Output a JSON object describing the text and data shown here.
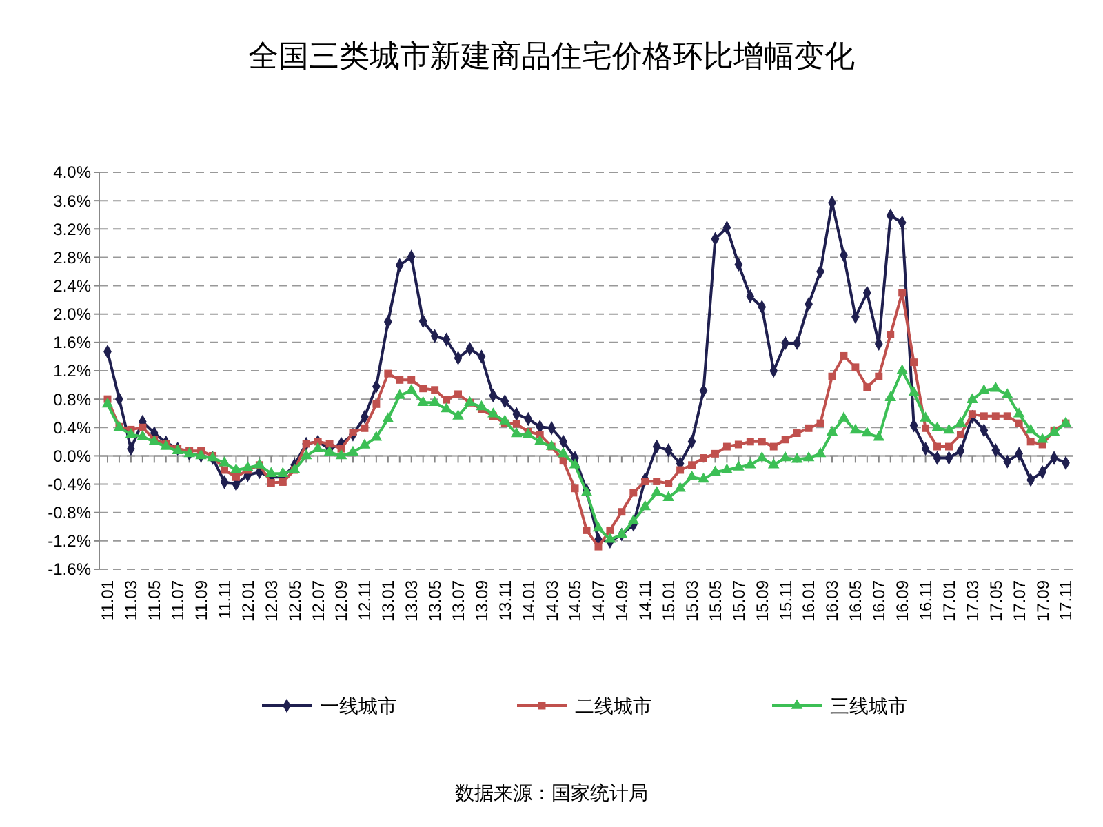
{
  "chart_data": {
    "type": "line",
    "title": "全国三类城市新建商品住宅价格环比增幅变化",
    "categories": [
      "11.01",
      null,
      "11.03",
      null,
      "11.05",
      null,
      "11.07",
      null,
      "11.09",
      null,
      "11.11",
      null,
      "12.01",
      null,
      "12.03",
      null,
      "12.05",
      null,
      "12.07",
      null,
      "12.09",
      null,
      "12.11",
      null,
      "13.01",
      null,
      "13.03",
      null,
      "13.05",
      null,
      "13.07",
      null,
      "13.09",
      null,
      "13.11",
      null,
      "14.01",
      null,
      "14.03",
      null,
      "14.05",
      null,
      "14.07",
      null,
      "14.09",
      null,
      "14.11",
      null,
      "15.01",
      null,
      "15.03",
      null,
      "15.05",
      null,
      "15.07",
      null,
      "15.09",
      null,
      "15.11",
      null,
      "16.01",
      null,
      "16.03",
      null,
      "16.05",
      null,
      "16.07",
      null,
      "16.09",
      null,
      "16.11",
      null,
      "17.01",
      null,
      "17.03",
      null,
      "17.05",
      null,
      "17.07",
      null,
      "17.09",
      null,
      "17.11"
    ],
    "series": [
      {
        "name": "一线城市",
        "color": "#1f1f4f",
        "marker": "diamond",
        "values": [
          1.47,
          0.8,
          0.1,
          0.48,
          0.32,
          0.19,
          0.1,
          0.03,
          0.0,
          -0.03,
          -0.37,
          -0.4,
          -0.27,
          -0.23,
          -0.3,
          -0.3,
          -0.13,
          0.17,
          0.2,
          0.1,
          0.17,
          0.3,
          0.55,
          0.98,
          1.89,
          2.69,
          2.81,
          1.9,
          1.69,
          1.64,
          1.38,
          1.51,
          1.4,
          0.85,
          0.77,
          0.59,
          0.52,
          0.41,
          0.39,
          0.2,
          -0.03,
          -0.49,
          -1.18,
          -1.21,
          -1.11,
          -0.97,
          -0.33,
          0.13,
          0.08,
          -0.11,
          0.2,
          0.92,
          3.06,
          3.22,
          2.7,
          2.25,
          2.1,
          1.2,
          1.59,
          1.59,
          2.14,
          2.6,
          3.57,
          2.83,
          1.96,
          2.3,
          1.58,
          3.39,
          3.29,
          0.43,
          0.1,
          -0.03,
          -0.03,
          0.07,
          0.55,
          0.36,
          0.08,
          -0.08,
          0.03,
          -0.34,
          -0.23,
          -0.03,
          -0.1
        ]
      },
      {
        "name": "二线城市",
        "color": "#c0504d",
        "marker": "square",
        "values": [
          0.8,
          0.41,
          0.37,
          0.4,
          0.23,
          0.17,
          0.1,
          0.07,
          0.07,
          0.0,
          -0.2,
          -0.3,
          -0.2,
          -0.13,
          -0.38,
          -0.37,
          -0.2,
          0.17,
          0.2,
          0.17,
          0.1,
          0.33,
          0.39,
          0.73,
          1.16,
          1.07,
          1.07,
          0.95,
          0.93,
          0.79,
          0.87,
          0.75,
          0.66,
          0.56,
          0.46,
          0.45,
          0.34,
          0.3,
          0.13,
          -0.07,
          -0.46,
          -1.05,
          -1.28,
          -1.05,
          -0.79,
          -0.52,
          -0.36,
          -0.36,
          -0.39,
          -0.2,
          -0.13,
          -0.03,
          0.03,
          0.13,
          0.16,
          0.2,
          0.2,
          0.13,
          0.23,
          0.32,
          0.39,
          0.46,
          1.12,
          1.41,
          1.25,
          0.97,
          1.12,
          1.71,
          2.3,
          1.32,
          0.39,
          0.13,
          0.13,
          0.3,
          0.59,
          0.56,
          0.56,
          0.56,
          0.46,
          0.2,
          0.16,
          0.36,
          0.46
        ]
      },
      {
        "name": "三线城市",
        "color": "#3cbf55",
        "marker": "triangle",
        "values": [
          0.73,
          0.4,
          0.3,
          0.27,
          0.2,
          0.13,
          0.07,
          0.03,
          0.0,
          -0.03,
          -0.1,
          -0.2,
          -0.17,
          -0.13,
          -0.25,
          -0.25,
          -0.2,
          0.0,
          0.1,
          0.05,
          0.0,
          0.05,
          0.15,
          0.26,
          0.52,
          0.85,
          0.92,
          0.75,
          0.75,
          0.66,
          0.56,
          0.75,
          0.69,
          0.59,
          0.49,
          0.31,
          0.3,
          0.2,
          0.13,
          0.03,
          -0.13,
          -0.52,
          -1.02,
          -1.18,
          -1.11,
          -0.92,
          -0.72,
          -0.52,
          -0.59,
          -0.46,
          -0.3,
          -0.33,
          -0.23,
          -0.2,
          -0.16,
          -0.13,
          -0.03,
          -0.13,
          -0.03,
          -0.05,
          -0.03,
          0.03,
          0.33,
          0.53,
          0.36,
          0.32,
          0.26,
          0.82,
          1.2,
          0.89,
          0.53,
          0.39,
          0.36,
          0.46,
          0.79,
          0.92,
          0.95,
          0.86,
          0.59,
          0.36,
          0.23,
          0.33,
          0.46
        ]
      }
    ],
    "ylim": [
      -1.6,
      4.0
    ],
    "yticks": [
      {
        "value": -1.6,
        "label": "-1.6%"
      },
      {
        "value": -1.2,
        "label": "-1.2%"
      },
      {
        "value": -0.8,
        "label": "-0.8%"
      },
      {
        "value": -0.4,
        "label": "-0.4%"
      },
      {
        "value": 0,
        "label": "0.0%"
      },
      {
        "value": 0.4,
        "label": "0.4%"
      },
      {
        "value": 0.8,
        "label": "0.8%"
      },
      {
        "value": 1.2,
        "label": "1.2%"
      },
      {
        "value": 1.6,
        "label": "1.6%"
      },
      {
        "value": 2.0,
        "label": "2.0%"
      },
      {
        "value": 2.4,
        "label": "2.4%"
      },
      {
        "value": 2.8,
        "label": "2.8%"
      },
      {
        "value": 3.2,
        "label": "3.2%"
      },
      {
        "value": 3.6,
        "label": "3.6%"
      },
      {
        "value": 4.0,
        "label": "4.0%"
      }
    ],
    "grid": "y",
    "line_style": "solid",
    "legend": "bottom",
    "annotations": [
      "数据来源：国家统计局"
    ]
  }
}
